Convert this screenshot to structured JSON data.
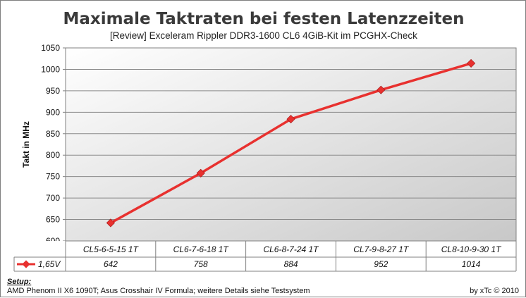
{
  "chart_data": {
    "type": "line",
    "title": "Maximale Taktraten bei festen Latenzzeiten",
    "subtitle": "[Review] Exceleram Rippler  DDR3-1600  CL6  4GiB-Kit  im  PCGHX-Check",
    "ylabel": "Takt  in  MHz",
    "xlabel": "",
    "ylim": [
      600,
      1050
    ],
    "yticks": [
      600,
      650,
      700,
      750,
      800,
      850,
      900,
      950,
      1000,
      1050
    ],
    "categories": [
      "CL5-6-5-15 1T",
      "CL6-7-6-18 1T",
      "CL6-8-7-24 1T",
      "CL7-9-8-27 1T",
      "CL8-10-9-30 1T"
    ],
    "series": [
      {
        "name": "1,65V",
        "values": [
          642,
          758,
          884,
          952,
          1014
        ],
        "color": "#e8312f"
      }
    ],
    "grid": true,
    "legend": "data-table-left"
  },
  "footer": {
    "setup_label": "Setup:",
    "setup_text": "AMD Phenom II X6 1090T; Asus Crosshair IV Formula; weitere Details siehe Testsystem",
    "credit": "by xTc © 2010"
  }
}
